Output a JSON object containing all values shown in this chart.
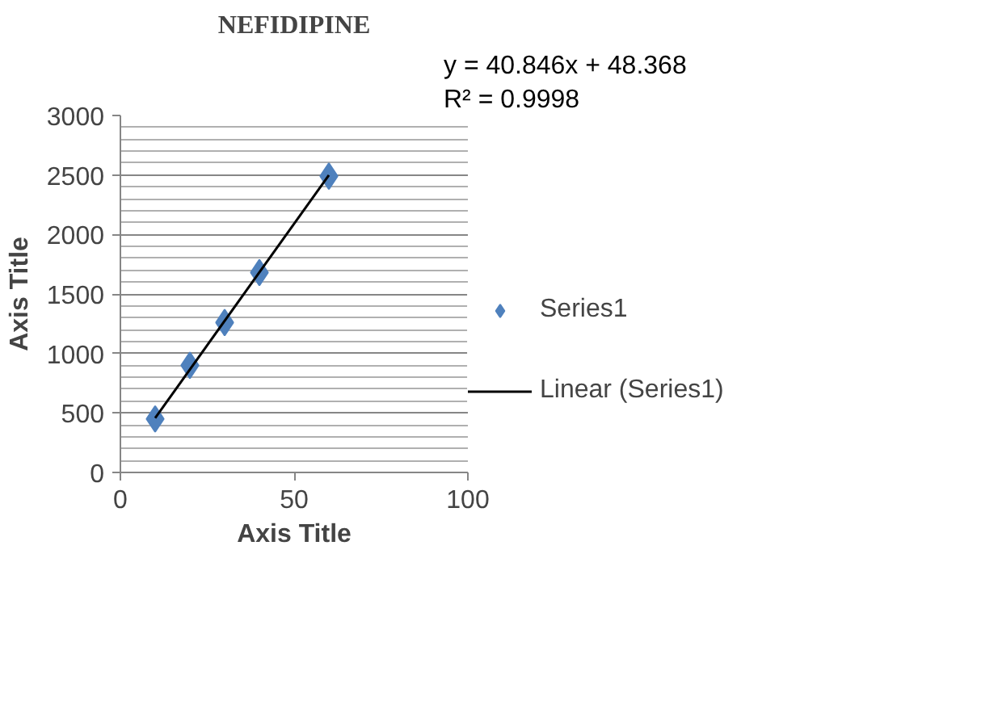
{
  "chart_data": {
    "type": "scatter",
    "title": "NEFIDIPINE",
    "xlabel": "Axis Title",
    "ylabel": "Axis Title",
    "series": [
      {
        "name": "Series1",
        "color": "#4f81bd",
        "x": [
          10,
          20,
          30,
          40,
          60
        ],
        "values": [
          450,
          900,
          1260,
          1680,
          2490
        ],
        "marker": "diamond"
      },
      {
        "name": "Linear (Series1)",
        "type": "line",
        "color": "#000000",
        "x": [
          10,
          60
        ],
        "values": [
          457,
          2499
        ]
      }
    ],
    "annotations": [
      "y = 40.846x + 48.368",
      "R² = 0.9998"
    ],
    "xlim": [
      0,
      100
    ],
    "xticks": [
      0,
      50,
      100
    ],
    "ylim": [
      0,
      3000
    ],
    "yticks": [
      0,
      500,
      1000,
      1500,
      2000,
      2500,
      3000
    ],
    "grid": "y",
    "legend": "right"
  }
}
